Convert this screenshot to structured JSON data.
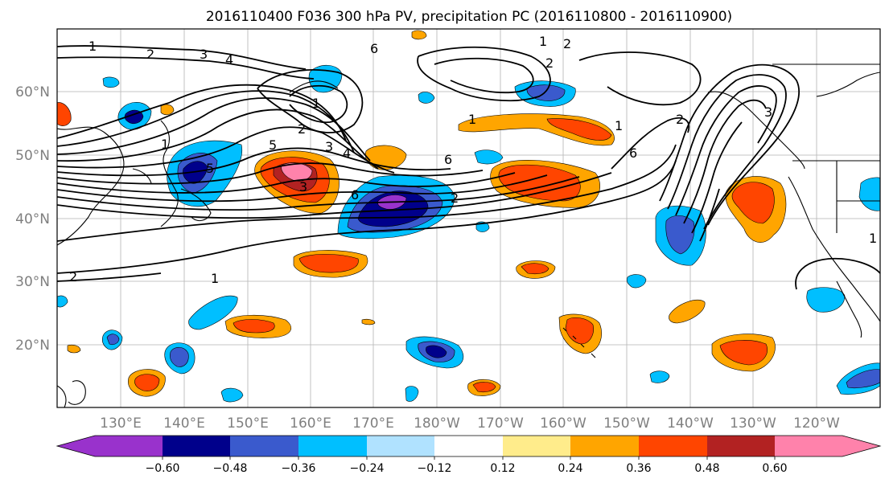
{
  "title": "2016110400 F036 300 hPa PV, precipitation PC (2016110800 - 2016110900)",
  "map": {
    "lon_labels": [
      "130°E",
      "140°E",
      "150°E",
      "160°E",
      "170°E",
      "180°W",
      "170°W",
      "160°W",
      "150°W",
      "140°W",
      "130°W",
      "120°W"
    ],
    "lat_labels": [
      "60°N",
      "50°N",
      "40°N",
      "30°N",
      "20°N"
    ],
    "contour_labels": [
      "1",
      "2",
      "3",
      "4",
      "1",
      "2",
      "3",
      "4",
      "5",
      "6",
      "1",
      "2",
      "3",
      "6",
      "1",
      "2",
      "1",
      "2",
      "6",
      "1",
      "2",
      "3",
      "5",
      "6",
      "1",
      "2",
      "1"
    ]
  },
  "colorbar": {
    "colors": [
      "#9932cc",
      "#00008b",
      "#3a5acd",
      "#00bfff",
      "#b0e2ff",
      "#ffffff",
      "#ffec8b",
      "#ffa500",
      "#ff4500",
      "#b22222",
      "#ff82ab"
    ],
    "tick_labels": [
      "−0.60",
      "−0.48",
      "−0.36",
      "−0.24",
      "−0.12",
      "0.12",
      "0.24",
      "0.36",
      "0.48",
      "0.60"
    ]
  }
}
